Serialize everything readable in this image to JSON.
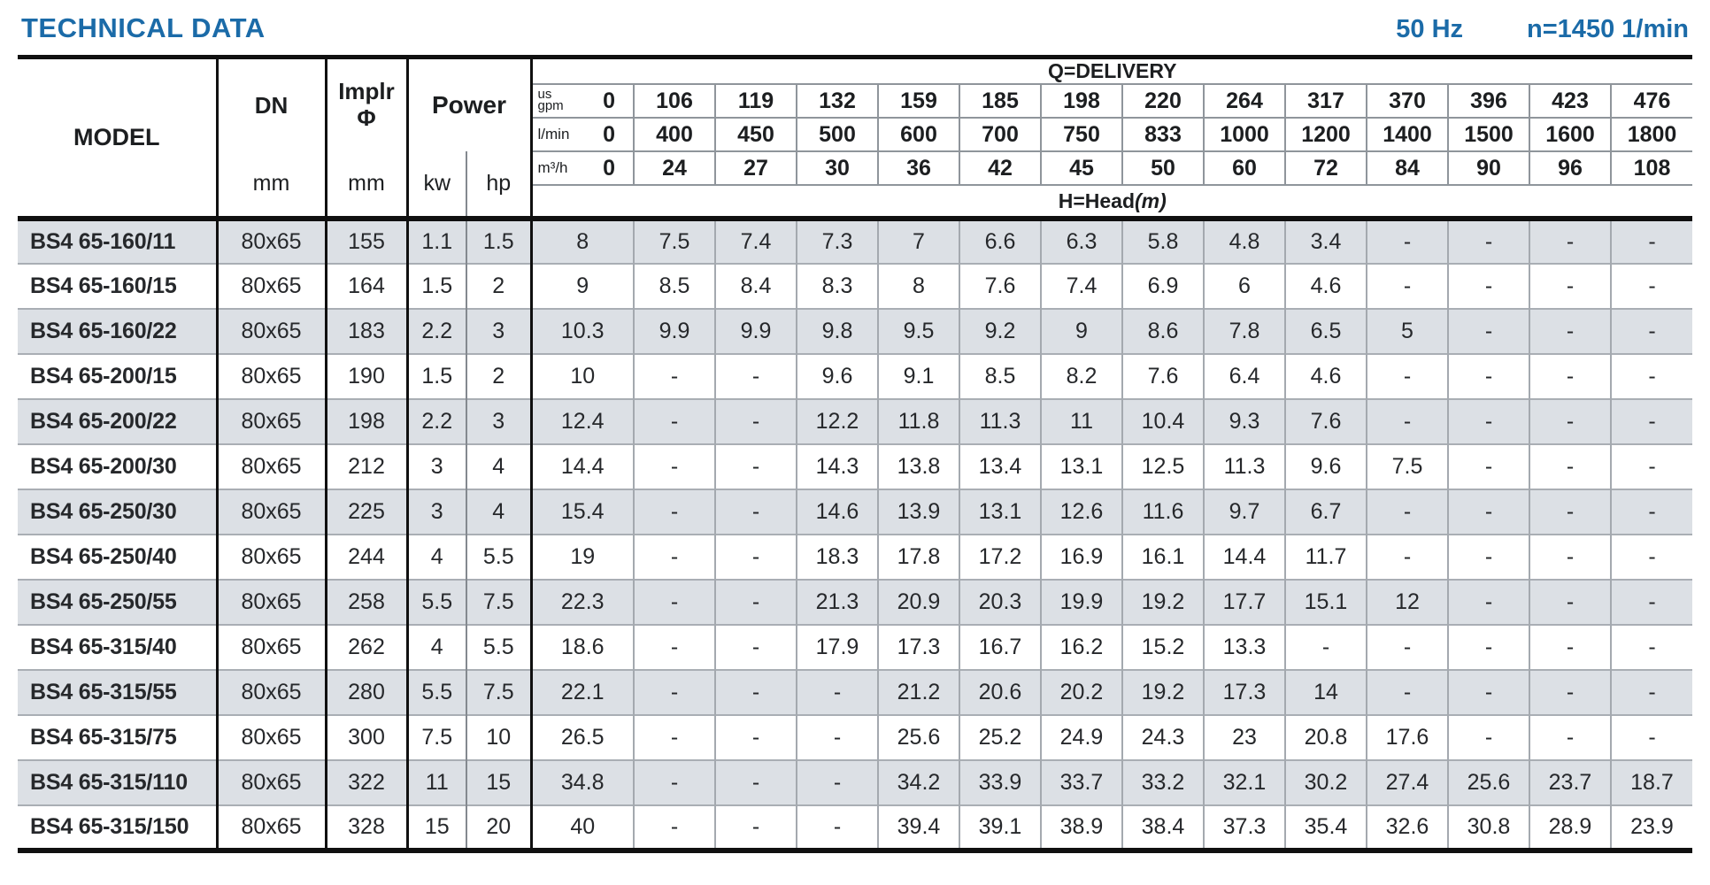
{
  "page": {
    "title": "TECHNICAL DATA",
    "frequency": "50 Hz",
    "speed": "n=1450 1/min"
  },
  "table": {
    "header": {
      "model": "MODEL",
      "dn": "DN",
      "dn_unit": "mm",
      "impeller_line1": "Implr",
      "impeller_line2": "Φ",
      "impeller_unit": "mm",
      "power": "Power",
      "power_kw": "kw",
      "power_hp": "hp",
      "delivery_title": "Q=DELIVERY",
      "head_label": "H=Head",
      "head_unit": "(m)",
      "units": [
        {
          "label": "us\ngpm",
          "zero": "0",
          "values": [
            "106",
            "119",
            "132",
            "159",
            "185",
            "198",
            "220",
            "264",
            "317",
            "370",
            "396",
            "423",
            "476"
          ]
        },
        {
          "label": "l/min",
          "zero": "0",
          "values": [
            "400",
            "450",
            "500",
            "600",
            "700",
            "750",
            "833",
            "1000",
            "1200",
            "1400",
            "1500",
            "1600",
            "1800"
          ]
        },
        {
          "label": "m³/h",
          "zero": "0",
          "values": [
            "24",
            "27",
            "30",
            "36",
            "42",
            "45",
            "50",
            "60",
            "72",
            "84",
            "90",
            "96",
            "108"
          ]
        }
      ]
    },
    "rows": [
      {
        "model": "BS4 65-160/11",
        "dn": "80x65",
        "impeller": "155",
        "kw": "1.1",
        "hp": "1.5",
        "head": [
          "8",
          "7.5",
          "7.4",
          "7.3",
          "7",
          "6.6",
          "6.3",
          "5.8",
          "4.8",
          "3.4",
          "-",
          "-",
          "-",
          "-"
        ]
      },
      {
        "model": "BS4 65-160/15",
        "dn": "80x65",
        "impeller": "164",
        "kw": "1.5",
        "hp": "2",
        "head": [
          "9",
          "8.5",
          "8.4",
          "8.3",
          "8",
          "7.6",
          "7.4",
          "6.9",
          "6",
          "4.6",
          "-",
          "-",
          "-",
          "-"
        ]
      },
      {
        "model": "BS4 65-160/22",
        "dn": "80x65",
        "impeller": "183",
        "kw": "2.2",
        "hp": "3",
        "head": [
          "10.3",
          "9.9",
          "9.9",
          "9.8",
          "9.5",
          "9.2",
          "9",
          "8.6",
          "7.8",
          "6.5",
          "5",
          "-",
          "-",
          "-"
        ]
      },
      {
        "model": "BS4 65-200/15",
        "dn": "80x65",
        "impeller": "190",
        "kw": "1.5",
        "hp": "2",
        "head": [
          "10",
          "-",
          "-",
          "9.6",
          "9.1",
          "8.5",
          "8.2",
          "7.6",
          "6.4",
          "4.6",
          "-",
          "-",
          "-",
          "-"
        ]
      },
      {
        "model": "BS4 65-200/22",
        "dn": "80x65",
        "impeller": "198",
        "kw": "2.2",
        "hp": "3",
        "head": [
          "12.4",
          "-",
          "-",
          "12.2",
          "11.8",
          "11.3",
          "11",
          "10.4",
          "9.3",
          "7.6",
          "-",
          "-",
          "-",
          "-"
        ]
      },
      {
        "model": "BS4 65-200/30",
        "dn": "80x65",
        "impeller": "212",
        "kw": "3",
        "hp": "4",
        "head": [
          "14.4",
          "-",
          "-",
          "14.3",
          "13.8",
          "13.4",
          "13.1",
          "12.5",
          "11.3",
          "9.6",
          "7.5",
          "-",
          "-",
          "-"
        ]
      },
      {
        "model": "BS4 65-250/30",
        "dn": "80x65",
        "impeller": "225",
        "kw": "3",
        "hp": "4",
        "head": [
          "15.4",
          "-",
          "-",
          "14.6",
          "13.9",
          "13.1",
          "12.6",
          "11.6",
          "9.7",
          "6.7",
          "-",
          "-",
          "-",
          "-"
        ]
      },
      {
        "model": "BS4 65-250/40",
        "dn": "80x65",
        "impeller": "244",
        "kw": "4",
        "hp": "5.5",
        "head": [
          "19",
          "-",
          "-",
          "18.3",
          "17.8",
          "17.2",
          "16.9",
          "16.1",
          "14.4",
          "11.7",
          "-",
          "-",
          "-",
          "-"
        ]
      },
      {
        "model": "BS4 65-250/55",
        "dn": "80x65",
        "impeller": "258",
        "kw": "5.5",
        "hp": "7.5",
        "head": [
          "22.3",
          "-",
          "-",
          "21.3",
          "20.9",
          "20.3",
          "19.9",
          "19.2",
          "17.7",
          "15.1",
          "12",
          "-",
          "-",
          "-"
        ]
      },
      {
        "model": "BS4 65-315/40",
        "dn": "80x65",
        "impeller": "262",
        "kw": "4",
        "hp": "5.5",
        "head": [
          "18.6",
          "-",
          "-",
          "17.9",
          "17.3",
          "16.7",
          "16.2",
          "15.2",
          "13.3",
          "-",
          "-",
          "-",
          "-",
          "-"
        ]
      },
      {
        "model": "BS4 65-315/55",
        "dn": "80x65",
        "impeller": "280",
        "kw": "5.5",
        "hp": "7.5",
        "head": [
          "22.1",
          "-",
          "-",
          "-",
          "21.2",
          "20.6",
          "20.2",
          "19.2",
          "17.3",
          "14",
          "-",
          "-",
          "-",
          "-"
        ]
      },
      {
        "model": "BS4 65-315/75",
        "dn": "80x65",
        "impeller": "300",
        "kw": "7.5",
        "hp": "10",
        "head": [
          "26.5",
          "-",
          "-",
          "-",
          "25.6",
          "25.2",
          "24.9",
          "24.3",
          "23",
          "20.8",
          "17.6",
          "-",
          "-",
          "-"
        ]
      },
      {
        "model": "BS4 65-315/110",
        "dn": "80x65",
        "impeller": "322",
        "kw": "11",
        "hp": "15",
        "head": [
          "34.8",
          "-",
          "-",
          "-",
          "34.2",
          "33.9",
          "33.7",
          "33.2",
          "32.1",
          "30.2",
          "27.4",
          "25.6",
          "23.7",
          "18.7"
        ]
      },
      {
        "model": "BS4 65-315/150",
        "dn": "80x65",
        "impeller": "328",
        "kw": "15",
        "hp": "20",
        "head": [
          "40",
          "-",
          "-",
          "-",
          "39.4",
          "39.1",
          "38.9",
          "38.4",
          "37.3",
          "35.4",
          "32.6",
          "30.8",
          "28.9",
          "23.9"
        ]
      }
    ]
  }
}
